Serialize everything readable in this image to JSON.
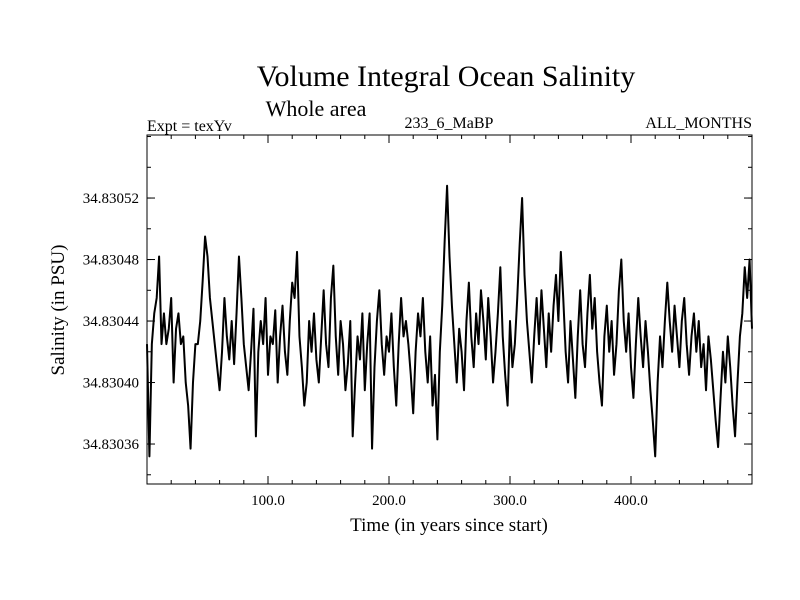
{
  "chart_data": {
    "type": "line",
    "title": "Volume Integral Ocean Salinity",
    "subtitle": "Whole area",
    "annotations": {
      "left": "Expt = texYv",
      "center": "233_6_MaBP",
      "right": "ALL_MONTHS"
    },
    "xlabel": "Time (in years since start)",
    "ylabel": "Salinity (in PSU)",
    "xlim": [
      0,
      500
    ],
    "ylim": [
      34.830334,
      34.830561
    ],
    "xticks": [
      100,
      200,
      300,
      400
    ],
    "xtick_labels": [
      "100.0",
      "200.0",
      "300.0",
      "400.0"
    ],
    "yticks": [
      34.83036,
      34.8304,
      34.83044,
      34.83048,
      34.83052
    ],
    "ytick_labels": [
      "34.83036",
      "34.83040",
      "34.83044",
      "34.83048",
      "34.83052"
    ],
    "grid": false,
    "line_color": "#000000",
    "series": [
      {
        "values": [
          [
            0,
            34.830425
          ],
          [
            2,
            34.830352
          ],
          [
            4,
            34.830425
          ],
          [
            6,
            34.830445
          ],
          [
            8,
            34.830455
          ],
          [
            10,
            34.830482
          ],
          [
            12,
            34.830425
          ],
          [
            14,
            34.830445
          ],
          [
            16,
            34.830425
          ],
          [
            18,
            34.830435
          ],
          [
            20,
            34.830455
          ],
          [
            22,
            34.8304
          ],
          [
            24,
            34.830435
          ],
          [
            26,
            34.830445
          ],
          [
            28,
            34.830425
          ],
          [
            30,
            34.83043
          ],
          [
            32,
            34.8304
          ],
          [
            34,
            34.830385
          ],
          [
            36,
            34.830357
          ],
          [
            38,
            34.8304
          ],
          [
            40,
            34.830425
          ],
          [
            42,
            34.830425
          ],
          [
            44,
            34.83044
          ],
          [
            46,
            34.830466
          ],
          [
            48,
            34.830495
          ],
          [
            50,
            34.830482
          ],
          [
            52,
            34.830455
          ],
          [
            54,
            34.83044
          ],
          [
            56,
            34.830425
          ],
          [
            58,
            34.83041
          ],
          [
            60,
            34.830395
          ],
          [
            62,
            34.83042
          ],
          [
            64,
            34.830455
          ],
          [
            66,
            34.83043
          ],
          [
            68,
            34.830415
          ],
          [
            70,
            34.83044
          ],
          [
            72,
            34.830412
          ],
          [
            74,
            34.830445
          ],
          [
            76,
            34.830482
          ],
          [
            78,
            34.830455
          ],
          [
            80,
            34.830425
          ],
          [
            82,
            34.83041
          ],
          [
            84,
            34.830395
          ],
          [
            86,
            34.83042
          ],
          [
            88,
            34.830448
          ],
          [
            90,
            34.830365
          ],
          [
            92,
            34.83042
          ],
          [
            94,
            34.83044
          ],
          [
            96,
            34.830425
          ],
          [
            98,
            34.830455
          ],
          [
            100,
            34.830405
          ],
          [
            102,
            34.83043
          ],
          [
            104,
            34.830425
          ],
          [
            106,
            34.830447
          ],
          [
            108,
            34.8304
          ],
          [
            110,
            34.83043
          ],
          [
            112,
            34.83045
          ],
          [
            114,
            34.83042
          ],
          [
            116,
            34.830405
          ],
          [
            118,
            34.83044
          ],
          [
            120,
            34.830465
          ],
          [
            122,
            34.830455
          ],
          [
            124,
            34.830485
          ],
          [
            126,
            34.83043
          ],
          [
            128,
            34.83041
          ],
          [
            130,
            34.830385
          ],
          [
            132,
            34.8304
          ],
          [
            134,
            34.83044
          ],
          [
            136,
            34.83042
          ],
          [
            138,
            34.830445
          ],
          [
            140,
            34.830415
          ],
          [
            142,
            34.8304
          ],
          [
            144,
            34.83043
          ],
          [
            146,
            34.83046
          ],
          [
            148,
            34.830425
          ],
          [
            150,
            34.83041
          ],
          [
            152,
            34.830455
          ],
          [
            154,
            34.830476
          ],
          [
            156,
            34.83043
          ],
          [
            158,
            34.830405
          ],
          [
            160,
            34.83044
          ],
          [
            162,
            34.830425
          ],
          [
            164,
            34.830395
          ],
          [
            166,
            34.830412
          ],
          [
            168,
            34.83044
          ],
          [
            170,
            34.830365
          ],
          [
            172,
            34.8304
          ],
          [
            174,
            34.83043
          ],
          [
            176,
            34.830415
          ],
          [
            178,
            34.830445
          ],
          [
            180,
            34.830395
          ],
          [
            182,
            34.830425
          ],
          [
            184,
            34.830445
          ],
          [
            186,
            34.830357
          ],
          [
            188,
            34.83041
          ],
          [
            190,
            34.83044
          ],
          [
            192,
            34.83046
          ],
          [
            194,
            34.830425
          ],
          [
            196,
            34.830405
          ],
          [
            198,
            34.83043
          ],
          [
            200,
            34.83042
          ],
          [
            202,
            34.830445
          ],
          [
            204,
            34.83041
          ],
          [
            206,
            34.830385
          ],
          [
            208,
            34.830425
          ],
          [
            210,
            34.830455
          ],
          [
            212,
            34.83043
          ],
          [
            214,
            34.83044
          ],
          [
            216,
            34.830425
          ],
          [
            218,
            34.830405
          ],
          [
            220,
            34.83038
          ],
          [
            222,
            34.83042
          ],
          [
            224,
            34.830445
          ],
          [
            226,
            34.83043
          ],
          [
            228,
            34.830455
          ],
          [
            230,
            34.83042
          ],
          [
            232,
            34.8304
          ],
          [
            234,
            34.83043
          ],
          [
            236,
            34.830385
          ],
          [
            238,
            34.830405
          ],
          [
            240,
            34.830363
          ],
          [
            242,
            34.83042
          ],
          [
            244,
            34.83045
          ],
          [
            246,
            34.830492
          ],
          [
            248,
            34.830528
          ],
          [
            250,
            34.830482
          ],
          [
            252,
            34.83045
          ],
          [
            254,
            34.830425
          ],
          [
            256,
            34.8304
          ],
          [
            258,
            34.830435
          ],
          [
            260,
            34.83042
          ],
          [
            262,
            34.830395
          ],
          [
            264,
            34.83044
          ],
          [
            266,
            34.830465
          ],
          [
            268,
            34.83043
          ],
          [
            270,
            34.83041
          ],
          [
            272,
            34.830445
          ],
          [
            274,
            34.830425
          ],
          [
            276,
            34.83046
          ],
          [
            278,
            34.83044
          ],
          [
            280,
            34.830415
          ],
          [
            282,
            34.830455
          ],
          [
            284,
            34.83043
          ],
          [
            286,
            34.8304
          ],
          [
            288,
            34.83042
          ],
          [
            290,
            34.830445
          ],
          [
            292,
            34.830475
          ],
          [
            294,
            34.83043
          ],
          [
            296,
            34.830405
          ],
          [
            298,
            34.830385
          ],
          [
            300,
            34.83044
          ],
          [
            302,
            34.83041
          ],
          [
            304,
            34.830425
          ],
          [
            306,
            34.830455
          ],
          [
            308,
            34.83049
          ],
          [
            310,
            34.83052
          ],
          [
            312,
            34.83047
          ],
          [
            314,
            34.83044
          ],
          [
            316,
            34.83042
          ],
          [
            318,
            34.8304
          ],
          [
            320,
            34.83043
          ],
          [
            322,
            34.830455
          ],
          [
            324,
            34.830425
          ],
          [
            326,
            34.83046
          ],
          [
            328,
            34.830435
          ],
          [
            330,
            34.83041
          ],
          [
            332,
            34.830445
          ],
          [
            334,
            34.83042
          ],
          [
            336,
            34.83045
          ],
          [
            338,
            34.83047
          ],
          [
            340,
            34.83044
          ],
          [
            342,
            34.830485
          ],
          [
            344,
            34.830455
          ],
          [
            346,
            34.83042
          ],
          [
            348,
            34.8304
          ],
          [
            350,
            34.83044
          ],
          [
            352,
            34.830415
          ],
          [
            354,
            34.83039
          ],
          [
            356,
            34.83043
          ],
          [
            358,
            34.83046
          ],
          [
            360,
            34.830425
          ],
          [
            362,
            34.83041
          ],
          [
            364,
            34.830445
          ],
          [
            366,
            34.83047
          ],
          [
            368,
            34.830435
          ],
          [
            370,
            34.830455
          ],
          [
            372,
            34.83042
          ],
          [
            374,
            34.8304
          ],
          [
            376,
            34.830385
          ],
          [
            378,
            34.83043
          ],
          [
            380,
            34.83045
          ],
          [
            382,
            34.83042
          ],
          [
            384,
            34.83044
          ],
          [
            386,
            34.830405
          ],
          [
            388,
            34.830425
          ],
          [
            390,
            34.83046
          ],
          [
            392,
            34.83048
          ],
          [
            394,
            34.83044
          ],
          [
            396,
            34.83042
          ],
          [
            398,
            34.830445
          ],
          [
            400,
            34.83041
          ],
          [
            402,
            34.83039
          ],
          [
            404,
            34.830425
          ],
          [
            406,
            34.830455
          ],
          [
            408,
            34.83043
          ],
          [
            410,
            34.83041
          ],
          [
            412,
            34.83044
          ],
          [
            414,
            34.83042
          ],
          [
            416,
            34.830395
          ],
          [
            418,
            34.830375
          ],
          [
            420,
            34.830352
          ],
          [
            422,
            34.8304
          ],
          [
            424,
            34.83043
          ],
          [
            426,
            34.83041
          ],
          [
            428,
            34.83044
          ],
          [
            430,
            34.830465
          ],
          [
            432,
            34.83044
          ],
          [
            434,
            34.83042
          ],
          [
            436,
            34.83045
          ],
          [
            438,
            34.83043
          ],
          [
            440,
            34.83041
          ],
          [
            442,
            34.83044
          ],
          [
            444,
            34.830455
          ],
          [
            446,
            34.830425
          ],
          [
            448,
            34.830405
          ],
          [
            450,
            34.83043
          ],
          [
            452,
            34.830445
          ],
          [
            454,
            34.83042
          ],
          [
            456,
            34.83044
          ],
          [
            458,
            34.83041
          ],
          [
            460,
            34.830425
          ],
          [
            462,
            34.830395
          ],
          [
            464,
            34.83043
          ],
          [
            466,
            34.830415
          ],
          [
            468,
            34.830395
          ],
          [
            470,
            34.830375
          ],
          [
            472,
            34.830358
          ],
          [
            474,
            34.83039
          ],
          [
            476,
            34.83042
          ],
          [
            478,
            34.8304
          ],
          [
            480,
            34.83043
          ],
          [
            482,
            34.83041
          ],
          [
            484,
            34.830385
          ],
          [
            486,
            34.830365
          ],
          [
            488,
            34.8304
          ],
          [
            490,
            34.83043
          ],
          [
            492,
            34.830445
          ],
          [
            494,
            34.830475
          ],
          [
            496,
            34.830455
          ],
          [
            498,
            34.83048
          ],
          [
            500,
            34.830435
          ]
        ]
      }
    ]
  }
}
